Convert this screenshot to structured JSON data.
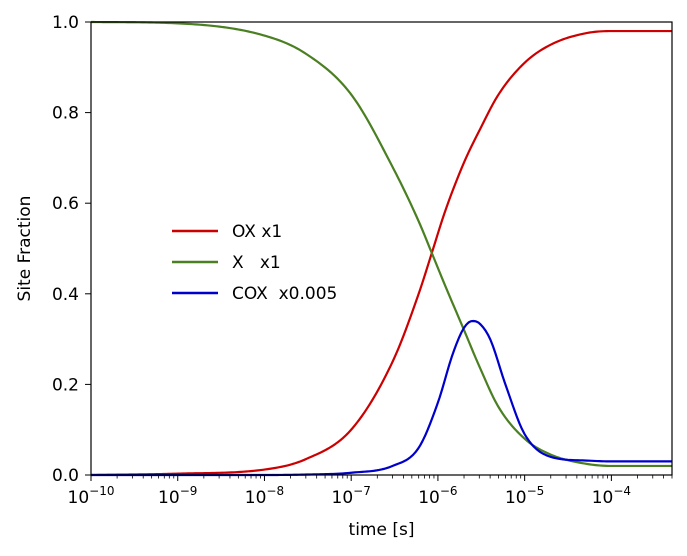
{
  "chart_data": {
    "type": "line",
    "title": "",
    "xlabel": "time [s]",
    "ylabel": "Site Fraction",
    "xscale": "log",
    "xlim": [
      1e-10,
      0.0005
    ],
    "ylim": [
      0.0,
      1.0
    ],
    "grid": false,
    "legend_position": "center-left",
    "x_tick_values": [
      1e-10,
      1e-09,
      1e-08,
      1e-07,
      1e-06,
      1e-05,
      0.0001
    ],
    "x_tick_labels": [
      {
        "base": "10",
        "exp": "−10"
      },
      {
        "base": "10",
        "exp": "−9"
      },
      {
        "base": "10",
        "exp": "−8"
      },
      {
        "base": "10",
        "exp": "−7"
      },
      {
        "base": "10",
        "exp": "−6"
      },
      {
        "base": "10",
        "exp": "−5"
      },
      {
        "base": "10",
        "exp": "−4"
      }
    ],
    "y_ticks": [
      0.0,
      0.2,
      0.4,
      0.6,
      0.8,
      1.0
    ],
    "y_tick_labels": [
      "0.0",
      "0.2",
      "0.4",
      "0.6",
      "0.8",
      "1.0"
    ],
    "series": [
      {
        "name": "OX x1",
        "color": "#cc0000",
        "x": [
          1e-10,
          1e-09,
          1e-08,
          3e-08,
          1e-07,
          3e-07,
          6e-07,
          8.5e-07,
          1.2e-06,
          2e-06,
          3e-06,
          5e-06,
          1e-05,
          2e-05,
          5e-05,
          0.0001,
          0.0005
        ],
        "y": [
          0.0,
          0.003,
          0.012,
          0.035,
          0.1,
          0.25,
          0.4,
          0.49,
          0.58,
          0.69,
          0.76,
          0.84,
          0.91,
          0.95,
          0.975,
          0.98,
          0.98
        ]
      },
      {
        "name": "X   x1",
        "color": "#4a7f22",
        "x": [
          1e-10,
          1e-09,
          1e-08,
          3e-08,
          1e-07,
          3e-07,
          6e-07,
          8.5e-07,
          1.2e-06,
          2e-06,
          3e-06,
          5e-06,
          1e-05,
          2e-05,
          5e-05,
          0.0001,
          0.0005
        ],
        "y": [
          1.0,
          0.997,
          0.97,
          0.93,
          0.84,
          0.68,
          0.56,
          0.49,
          0.42,
          0.32,
          0.24,
          0.15,
          0.08,
          0.045,
          0.025,
          0.02,
          0.02
        ]
      },
      {
        "name": "COX  x0.005",
        "color": "#0000cc",
        "x": [
          1e-10,
          1e-09,
          1e-08,
          3e-08,
          1e-07,
          3e-07,
          6e-07,
          1e-06,
          1.5e-06,
          2e-06,
          2.5e-06,
          3e-06,
          4e-06,
          6e-06,
          1e-05,
          2e-05,
          5e-05,
          0.0001,
          0.0005
        ],
        "y": [
          0.0,
          0.0,
          0.0,
          0.001,
          0.005,
          0.02,
          0.06,
          0.16,
          0.27,
          0.325,
          0.34,
          0.335,
          0.3,
          0.2,
          0.09,
          0.04,
          0.032,
          0.03,
          0.03
        ]
      }
    ]
  }
}
